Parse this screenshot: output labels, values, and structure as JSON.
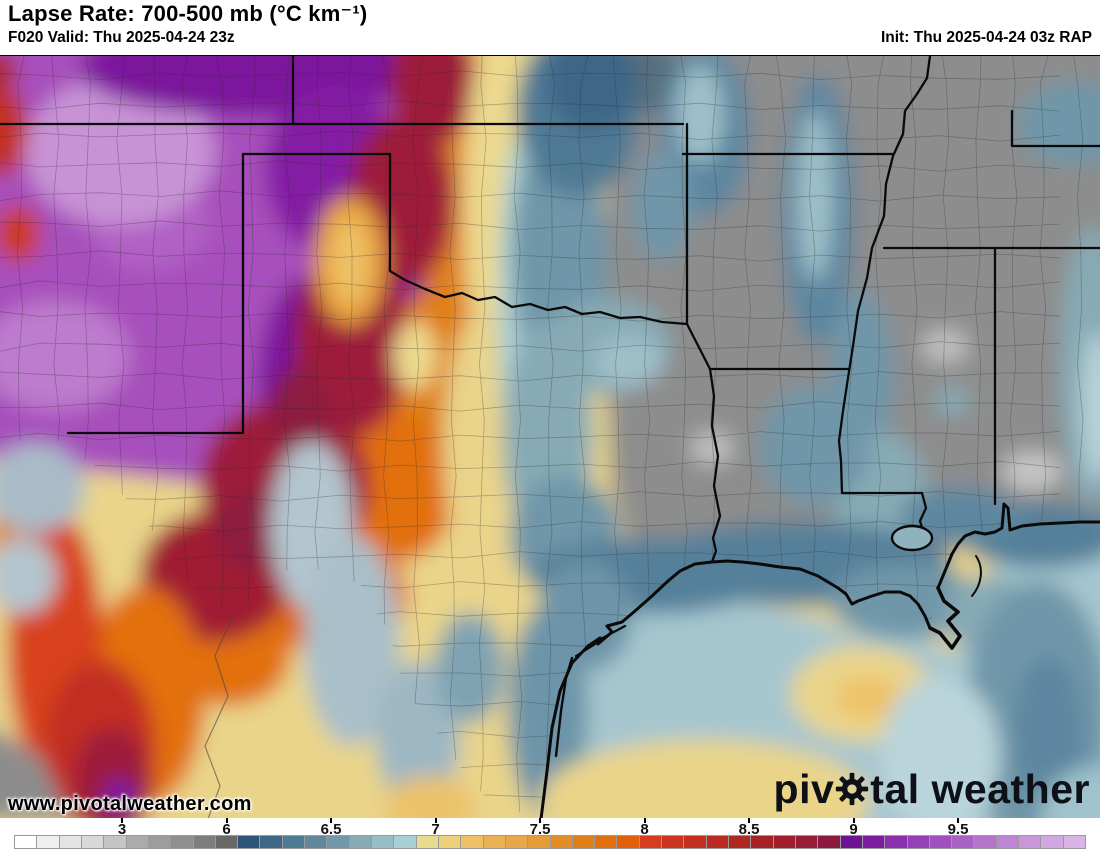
{
  "header": {
    "title": "Lapse Rate: 700-500 mb (°C km⁻¹)",
    "valid": "F020 Valid: Thu 2025-04-24 23z",
    "init": "Init: Thu 2025-04-24 03z RAP"
  },
  "map": {
    "region_shown": "South-central United States and Gulf Coast (Texas, Oklahoma, Arkansas, Louisiana, Mississippi)",
    "watermark": {
      "brand_pre": "piv",
      "brand_post": "tal weather",
      "url": "www.pivotalweather.com"
    }
  },
  "colorbar": {
    "tick_labels": [
      "3",
      "6",
      "6.5",
      "7",
      "7.5",
      "8",
      "8.5",
      "9",
      "9.5"
    ],
    "cell_colors": [
      "#ffffff",
      "#efefef",
      "#e4e4e4",
      "#d8d8d8",
      "#c5c5c5",
      "#ababab",
      "#9d9d9d",
      "#8f8f8f",
      "#7d7d7d",
      "#686868",
      "#2e5578",
      "#3d6687",
      "#4f7a94",
      "#62889e",
      "#7396a9",
      "#87aab5",
      "#99bdc4",
      "#a9ced3",
      "#e7dc8d",
      "#ecd17a",
      "#edc267",
      "#ebb254",
      "#e8a84a",
      "#e49c38",
      "#e28d26",
      "#e07f18",
      "#e2700d",
      "#e26008",
      "#d63c1e",
      "#cd3420",
      "#c42f1f",
      "#ba2a20",
      "#b02623",
      "#a62227",
      "#a01e2e",
      "#961c37",
      "#8c1a40",
      "#6d1293",
      "#7d1ca3",
      "#8a2fae",
      "#9440b6",
      "#9f50bd",
      "#aa61c5",
      "#b573cb",
      "#bf84d3",
      "#c996da",
      "#d2a6e1",
      "#dab4e6"
    ]
  },
  "key_colors": {
    "low_lapse_gray": "#8d8d8d",
    "gulf_light_blue": "#a6c6cf",
    "steel_blue": "#5d87a0",
    "cream": "#e9d48a",
    "orange": "#e2700d",
    "crimson": "#9e1c3a",
    "high_lapse_purple": "#7c149c",
    "watermark_text": "#0d1117"
  }
}
